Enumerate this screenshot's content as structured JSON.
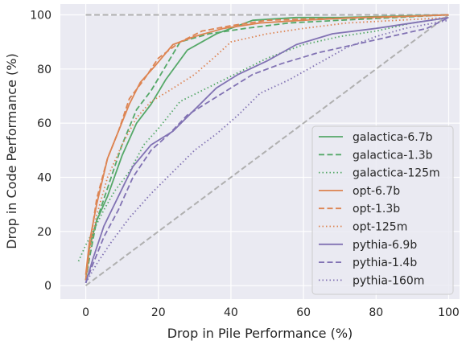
{
  "chart_data": {
    "type": "line",
    "xlabel": "Drop in Pile Performance (%)",
    "ylabel": "Drop in Code Performance (%)",
    "xlim": [
      -7,
      103
    ],
    "ylim": [
      -5,
      104
    ],
    "xticks": [
      0,
      20,
      40,
      60,
      80,
      100
    ],
    "yticks": [
      0,
      20,
      40,
      60,
      80,
      100
    ],
    "grid": true,
    "background_color": "#EAEAF2",
    "legend_position": "lower-right",
    "reference_lines": [
      {
        "style": "dashed",
        "color": "#B0B0B0",
        "x": [
          0,
          100
        ],
        "y": [
          100,
          100
        ]
      },
      {
        "style": "dashed",
        "color": "#B0B0B0",
        "x": [
          0,
          100
        ],
        "y": [
          0,
          100
        ]
      }
    ],
    "series": [
      {
        "name": "galactica-6.7b",
        "color": "#55A868",
        "dash": "solid",
        "x": [
          0,
          1,
          3,
          6,
          10,
          14,
          18,
          22,
          28,
          36,
          46,
          58,
          70,
          85,
          100
        ],
        "y": [
          2,
          14,
          24,
          33,
          48,
          60,
          67,
          76,
          87,
          93,
          98,
          99,
          99,
          99.5,
          100
        ]
      },
      {
        "name": "galactica-1.3b",
        "color": "#55A868",
        "dash": "dashed",
        "x": [
          0,
          1,
          3,
          6,
          10,
          14,
          18,
          22,
          26,
          34,
          44,
          56,
          70,
          85,
          100
        ],
        "y": [
          2,
          10,
          24,
          36,
          52,
          65,
          72,
          81,
          90,
          93,
          95,
          97,
          98,
          99,
          100
        ]
      },
      {
        "name": "galactica-125m",
        "color": "#55A868",
        "dash": "dotted",
        "x": [
          -2,
          0,
          2,
          5,
          8,
          12,
          16,
          20,
          26,
          32,
          38,
          44,
          50,
          60,
          70,
          80,
          90,
          100
        ],
        "y": [
          9,
          15,
          20,
          28,
          35,
          42,
          52,
          58,
          68,
          72,
          76,
          80,
          84,
          89,
          92,
          94,
          97,
          99
        ]
      },
      {
        "name": "opt-6.7b",
        "color": "#DD8452",
        "dash": "solid",
        "x": [
          0,
          1,
          3,
          6,
          9,
          12,
          15,
          19,
          24,
          30,
          38,
          48,
          60,
          75,
          90,
          100
        ],
        "y": [
          4,
          16,
          30,
          47,
          57,
          67,
          75,
          81,
          89,
          92,
          95,
          97,
          98,
          99,
          99.5,
          100
        ]
      },
      {
        "name": "opt-1.3b",
        "color": "#DD8452",
        "dash": "dashed",
        "x": [
          0,
          1,
          3,
          6,
          9,
          12,
          16,
          20,
          26,
          32,
          40,
          50,
          62,
          80,
          100
        ],
        "y": [
          2,
          14,
          32,
          47,
          57,
          69,
          76,
          84,
          90,
          94,
          96,
          98,
          98.5,
          99,
          100
        ]
      },
      {
        "name": "opt-125m",
        "color": "#DD8452",
        "dash": "dotted",
        "x": [
          0,
          1,
          3,
          6,
          10,
          14,
          18,
          23,
          30,
          36,
          40,
          50,
          60,
          72,
          86,
          100
        ],
        "y": [
          2,
          12,
          26,
          40,
          52,
          62,
          68,
          72,
          78,
          85,
          90,
          93,
          95,
          97,
          98,
          99
        ]
      },
      {
        "name": "pythia-6.9b",
        "color": "#8172B3",
        "dash": "solid",
        "x": [
          0,
          2,
          5,
          9,
          13,
          18,
          24,
          30,
          36,
          42,
          50,
          58,
          68,
          80,
          90,
          100
        ],
        "y": [
          1,
          10,
          22,
          33,
          44,
          52,
          57,
          65,
          73,
          78,
          83,
          89,
          93,
          95,
          97,
          99
        ]
      },
      {
        "name": "pythia-1.4b",
        "color": "#8172B3",
        "dash": "dashed",
        "x": [
          0,
          2,
          5,
          9,
          13,
          18,
          23,
          28,
          34,
          40,
          46,
          54,
          64,
          74,
          84,
          94,
          100
        ],
        "y": [
          1,
          8,
          18,
          28,
          40,
          50,
          56,
          63,
          68,
          73,
          78,
          82,
          86,
          89,
          92,
          95,
          99
        ]
      },
      {
        "name": "pythia-160m",
        "color": "#8172B3",
        "dash": "dotted",
        "x": [
          0,
          3,
          7,
          12,
          18,
          24,
          30,
          36,
          42,
          48,
          56,
          64,
          72,
          80,
          88,
          96,
          100
        ],
        "y": [
          1,
          8,
          16,
          25,
          34,
          42,
          50,
          56,
          63,
          71,
          76,
          82,
          88,
          92,
          95,
          97,
          98
        ]
      }
    ]
  }
}
